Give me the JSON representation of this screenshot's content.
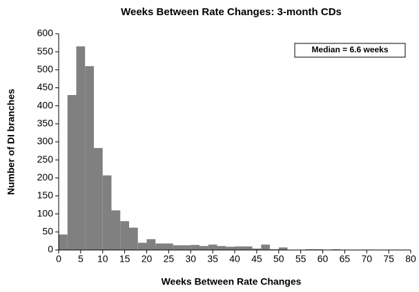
{
  "chart_data": {
    "type": "histogram",
    "title": "Weeks Between Rate Changes: 3-month CDs",
    "x_label": "Weeks Between Rate Changes",
    "y_label": "Number of DI branches",
    "annotation": "Median = 6.6 weeks",
    "color": "#808080",
    "bins": [
      0,
      2,
      4,
      6,
      8,
      10,
      12,
      14,
      16,
      18,
      20,
      22,
      24,
      26,
      28,
      30,
      32,
      34,
      36,
      38,
      40,
      42,
      44,
      46,
      48,
      50,
      52,
      54,
      56,
      58,
      60,
      62,
      64,
      66,
      68,
      70,
      72,
      74,
      76,
      78,
      80
    ],
    "values": [
      43,
      430,
      565,
      510,
      283,
      207,
      110,
      80,
      62,
      20,
      30,
      18,
      18,
      13,
      13,
      14,
      11,
      15,
      11,
      9,
      10,
      10,
      4,
      15,
      2,
      7,
      1,
      1,
      2,
      2,
      1,
      2,
      1,
      1,
      1,
      1,
      1,
      1,
      1,
      0
    ],
    "xlim": [
      0,
      80
    ],
    "xticks": [
      0,
      5,
      10,
      15,
      20,
      25,
      30,
      35,
      40,
      45,
      50,
      55,
      60,
      65,
      70,
      75,
      80
    ],
    "ylim": [
      0,
      600
    ],
    "yticks": [
      0,
      50,
      100,
      150,
      200,
      250,
      300,
      350,
      400,
      450,
      500,
      550,
      600
    ]
  }
}
